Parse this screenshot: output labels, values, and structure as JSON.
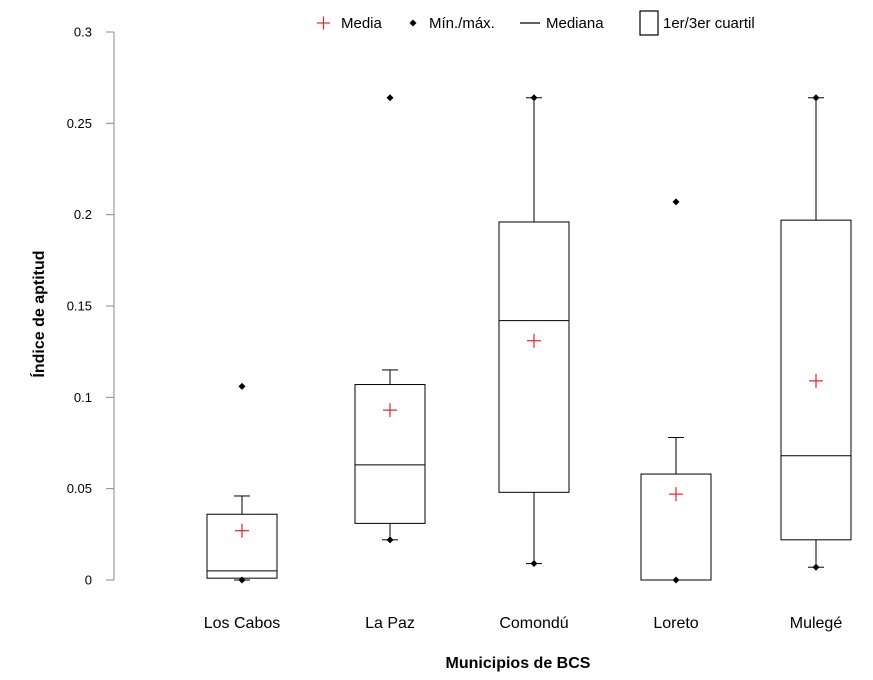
{
  "chart_data": {
    "type": "box",
    "xlabel": "Municipios de BCS",
    "ylabel": "Índice de aptitud",
    "ylim": [
      0,
      0.3
    ],
    "yticks": [
      "0",
      "0.05",
      "0.1",
      "0.15",
      "0.2",
      "0.25",
      "0.3"
    ],
    "categories": [
      "Los Cabos",
      "La Paz",
      "Comondú",
      "Loreto",
      "Mulegé"
    ],
    "legend": {
      "position": "top",
      "items": {
        "mean": "Media",
        "minmax": "Mín./máx.",
        "median": "Mediana",
        "quartiles": "1er/3er cuartil"
      }
    },
    "colors": {
      "mean": "#e8232a",
      "box": "#000000",
      "points": "#000000"
    },
    "series": [
      {
        "category": "Los Cabos",
        "min": 0.0,
        "q1": 0.001,
        "median": 0.005,
        "q3": 0.036,
        "whisker_high": 0.046,
        "max": 0.106,
        "mean": 0.027
      },
      {
        "category": "La Paz",
        "min": 0.022,
        "q1": 0.031,
        "median": 0.063,
        "q3": 0.107,
        "whisker_high": 0.115,
        "max": 0.264,
        "mean": 0.093
      },
      {
        "category": "Comondú",
        "min": 0.009,
        "q1": 0.048,
        "median": 0.142,
        "q3": 0.196,
        "whisker_high": 0.264,
        "max": 0.264,
        "mean": 0.131
      },
      {
        "category": "Loreto",
        "min": 0.0,
        "q1": 0.0,
        "median": 0.0,
        "q3": 0.058,
        "whisker_high": 0.078,
        "max": 0.207,
        "mean": 0.047
      },
      {
        "category": "Mulegé",
        "min": 0.007,
        "q1": 0.022,
        "median": 0.068,
        "q3": 0.197,
        "whisker_high": 0.264,
        "max": 0.264,
        "mean": 0.109
      }
    ]
  }
}
